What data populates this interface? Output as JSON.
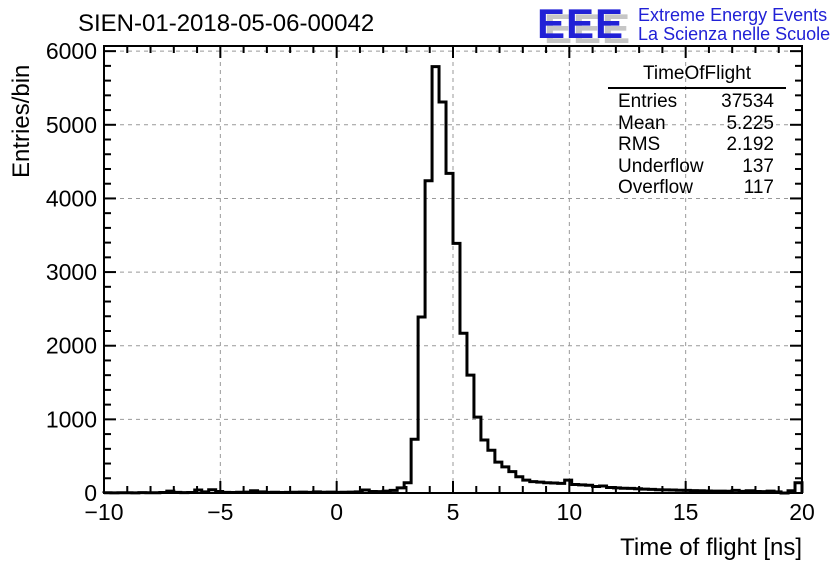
{
  "page": {
    "background": "#ffffff"
  },
  "header": {
    "title": "SIEN-01-2018-05-06-00042",
    "logo": {
      "acronym": "EEE",
      "line1": "Extreme Energy Events",
      "line2": "La Scienza nelle Scuole",
      "color": "#2121d6",
      "shadow_color": "#c6c6c6"
    }
  },
  "stats_box": {
    "title": "TimeOfFlight",
    "rows": [
      {
        "label": "Entries",
        "value": "37534"
      },
      {
        "label": "Mean",
        "value": "5.225"
      },
      {
        "label": "RMS",
        "value": "2.192"
      },
      {
        "label": "Underflow",
        "value": "137"
      },
      {
        "label": "Overflow",
        "value": "117"
      }
    ]
  },
  "chart_data": {
    "type": "bar",
    "title": "SIEN-01-2018-05-06-00042",
    "xlabel": "Time of flight [ns]",
    "ylabel": "Entries/bin",
    "xlim": [
      -10,
      20
    ],
    "ylim": [
      0,
      6070
    ],
    "grid": true,
    "legend_position": "none",
    "grid_color": "#999999",
    "line_color": "#000000",
    "bin_start": -10,
    "bin_width": 0.3,
    "bins": [
      3,
      2,
      4,
      3,
      2,
      5,
      4,
      3,
      6,
      25,
      8,
      5,
      6,
      40,
      15,
      45,
      20,
      8,
      6,
      10,
      12,
      30,
      15,
      8,
      10,
      6,
      8,
      10,
      12,
      8,
      15,
      10,
      12,
      8,
      10,
      12,
      15,
      40,
      20,
      18,
      25,
      35,
      70,
      140,
      730,
      2390,
      4240,
      5790,
      5310,
      4340,
      3390,
      2170,
      1600,
      1030,
      720,
      580,
      420,
      355,
      290,
      220,
      175,
      155,
      148,
      140,
      135,
      130,
      175,
      115,
      110,
      105,
      88,
      95,
      75,
      70,
      65,
      62,
      58,
      52,
      50,
      45,
      42,
      40,
      38,
      35,
      32,
      30,
      28,
      26,
      25,
      24,
      35,
      22,
      30,
      20,
      18,
      25,
      15,
      0,
      30,
      140
    ],
    "x_major_ticks": [
      -10,
      -5,
      0,
      5,
      10,
      15,
      20
    ],
    "x_tick_labels": [
      "−10",
      "−5",
      "0",
      "5",
      "10",
      "15",
      "20"
    ],
    "x_minor_step": 1,
    "y_major_ticks": [
      0,
      1000,
      2000,
      3000,
      4000,
      5000,
      6000
    ],
    "y_tick_labels": [
      "0",
      "1000",
      "2000",
      "3000",
      "4000",
      "5000",
      "6000"
    ],
    "y_minor_step": 200
  }
}
